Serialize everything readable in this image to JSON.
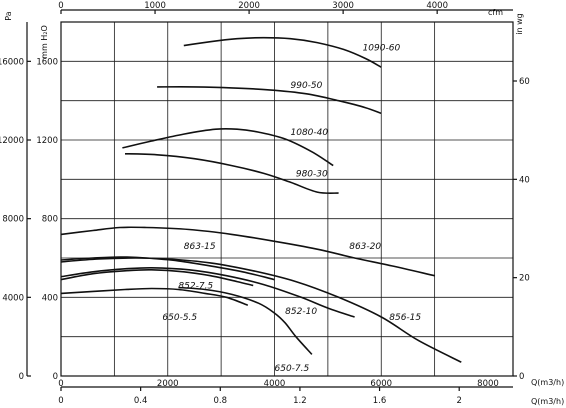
{
  "chart_data": {
    "type": "line",
    "title": "",
    "axes": {
      "left_pa": {
        "label": "Pa",
        "ticks": [
          0,
          4000,
          8000,
          12000,
          16000
        ],
        "range": [
          0,
          18000
        ]
      },
      "left_mmh2o": {
        "label": "mm H₂O",
        "ticks": [
          0,
          400,
          800,
          1200,
          1600
        ],
        "range": [
          0,
          1800
        ]
      },
      "right_inwg": {
        "label": "in wg",
        "ticks": [
          0,
          20,
          40,
          60
        ],
        "range": [
          0,
          72
        ]
      },
      "bottom_m3h": {
        "label": "Q(m3/h)",
        "ticks": [
          0,
          2000,
          4000,
          6000,
          8000
        ],
        "range": [
          0,
          8000
        ]
      },
      "bottom_m3s": {
        "label": "Q(m3/h)",
        "ticks": [
          "0",
          "0.4",
          "0.8",
          "1.2",
          "1.6",
          "2"
        ],
        "tick_values": [
          0,
          0.4,
          0.8,
          1.2,
          1.6,
          2.0
        ],
        "range": [
          0,
          2.22
        ]
      },
      "top_cfm": {
        "label": "cfm",
        "ticks": [
          0,
          1000,
          2000,
          3000,
          4000
        ],
        "range": [
          0,
          4700
        ]
      }
    },
    "grid": true,
    "x_unit": "m3/h",
    "y_unit": "mm H2O",
    "series": [
      {
        "name": "1090-60",
        "x": [
          2300,
          2800,
          3300,
          3800,
          4300,
          4800,
          5300,
          5700,
          6000
        ],
        "y": [
          1680,
          1700,
          1715,
          1720,
          1715,
          1695,
          1660,
          1615,
          1570
        ],
        "label_at": [
          5650,
          1670
        ]
      },
      {
        "name": "990-50",
        "x": [
          1800,
          2500,
          3200,
          3900,
          4600,
          5200,
          5700,
          6000
        ],
        "y": [
          1470,
          1470,
          1465,
          1455,
          1435,
          1400,
          1365,
          1335
        ],
        "label_at": [
          4300,
          1480
        ]
      },
      {
        "name": "1080-40",
        "x": [
          1150,
          1700,
          2300,
          2900,
          3300,
          3700,
          4200,
          4700,
          5100
        ],
        "y": [
          1160,
          1195,
          1230,
          1255,
          1255,
          1240,
          1205,
          1140,
          1070
        ],
        "label_at": [
          4300,
          1240
        ]
      },
      {
        "name": "980-30",
        "x": [
          1200,
          1800,
          2500,
          3200,
          3800,
          4300,
          4800,
          5200
        ],
        "y": [
          1130,
          1125,
          1105,
          1070,
          1030,
          985,
          935,
          930
        ],
        "label_at": [
          4400,
          1030
        ]
      },
      {
        "name": "863-20",
        "x": [
          0,
          600,
          1100,
          1600,
          2400,
          3200,
          4000,
          4800,
          5500,
          6200,
          7000
        ],
        "y": [
          720,
          740,
          755,
          755,
          745,
          720,
          685,
          645,
          600,
          560,
          510
        ],
        "label_at": [
          5400,
          660
        ]
      },
      {
        "name": "863-15",
        "x": [
          0,
          600,
          1100,
          1600,
          2200,
          2800,
          3400,
          4000
        ],
        "y": [
          590,
          600,
          605,
          600,
          585,
          560,
          530,
          490
        ],
        "label_at": [
          2300,
          660
        ]
      },
      {
        "name": "856-15",
        "x": [
          0,
          700,
          1400,
          2000,
          2800,
          3600,
          4400,
          5200,
          6000,
          6700,
          7500
        ],
        "y": [
          580,
          595,
          600,
          595,
          575,
          535,
          480,
          400,
          300,
          180,
          70
        ],
        "label_at": [
          6150,
          300
        ]
      },
      {
        "name": "852-10",
        "x": [
          0,
          600,
          1200,
          1700,
          2400,
          3100,
          3800,
          4500,
          5000,
          5500
        ],
        "y": [
          505,
          530,
          545,
          550,
          540,
          510,
          465,
          400,
          345,
          300
        ],
        "label_at": [
          4200,
          330
        ]
      },
      {
        "name": "852-7.5",
        "x": [
          0,
          600,
          1200,
          1700,
          2300,
          2800,
          3300,
          3600
        ],
        "y": [
          490,
          520,
          535,
          540,
          530,
          510,
          480,
          460
        ],
        "label_at": [
          2200,
          460
        ]
      },
      {
        "name": "650-5.5",
        "x": [
          0,
          600,
          1200,
          1700,
          2200,
          2700,
          3100,
          3500
        ],
        "y": [
          420,
          430,
          440,
          445,
          440,
          420,
          400,
          360
        ],
        "label_at": [
          1900,
          300
        ]
      },
      {
        "name": "650-7.5",
        "x": [
          2200,
          2700,
          3200,
          3700,
          4000,
          4200,
          4400,
          4700
        ],
        "y": [
          450,
          440,
          415,
          370,
          320,
          270,
          200,
          110
        ],
        "label_at": [
          4000,
          40
        ]
      }
    ]
  }
}
